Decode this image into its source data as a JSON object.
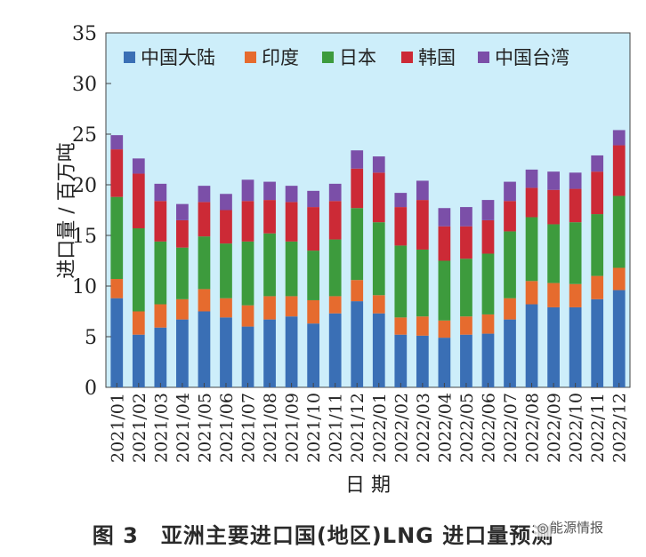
{
  "chart_data": {
    "type": "bar",
    "stacked": true,
    "title": "",
    "xlabel": "日 期",
    "ylabel": "进口量 / 百万吨",
    "ylim": [
      0,
      35
    ],
    "yticks": [
      0,
      5,
      10,
      15,
      20,
      25,
      30,
      35
    ],
    "legend_position": "top",
    "categories": [
      "2021/01",
      "2021/02",
      "2021/03",
      "2021/04",
      "2021/05",
      "2021/06",
      "2021/07",
      "2021/08",
      "2021/09",
      "2021/10",
      "2021/11",
      "2021/12",
      "2022/01",
      "2022/02",
      "2022/03",
      "2022/04",
      "2022/05",
      "2022/06",
      "2022/07",
      "2022/08",
      "2022/09",
      "2022/10",
      "2022/11",
      "2022/12"
    ],
    "series": [
      {
        "name": "中国大陆",
        "color": "#3a6fb5",
        "values": [
          8.8,
          5.2,
          5.9,
          6.7,
          7.5,
          6.9,
          6.0,
          6.7,
          7.0,
          6.3,
          7.3,
          8.5,
          7.3,
          5.2,
          5.1,
          4.9,
          5.2,
          5.3,
          6.7,
          8.2,
          7.9,
          7.9,
          8.7,
          9.6
        ]
      },
      {
        "name": "印度",
        "color": "#e66b2e",
        "values": [
          1.9,
          2.3,
          2.3,
          2.0,
          2.2,
          1.9,
          2.1,
          2.3,
          2.0,
          2.3,
          1.7,
          2.1,
          1.8,
          1.7,
          1.9,
          1.7,
          1.8,
          1.9,
          2.1,
          2.3,
          2.4,
          2.3,
          2.3,
          2.2
        ]
      },
      {
        "name": "日本",
        "color": "#3d9b3d",
        "values": [
          8.1,
          8.2,
          6.2,
          5.1,
          5.2,
          5.4,
          6.3,
          6.2,
          5.4,
          4.9,
          5.6,
          7.1,
          7.2,
          7.1,
          6.6,
          5.9,
          5.7,
          6.0,
          6.6,
          6.3,
          5.8,
          6.1,
          6.1,
          7.1
        ]
      },
      {
        "name": "韩国",
        "color": "#cc2a36",
        "values": [
          4.7,
          5.4,
          4.0,
          2.7,
          3.4,
          3.3,
          4.0,
          3.3,
          3.9,
          4.3,
          3.8,
          3.9,
          4.9,
          3.8,
          4.9,
          3.4,
          3.2,
          3.3,
          3.0,
          2.9,
          3.4,
          3.3,
          4.2,
          5.0
        ]
      },
      {
        "name": "中国台湾",
        "color": "#7b4fa8",
        "values": [
          1.4,
          1.5,
          1.7,
          1.6,
          1.6,
          1.6,
          2.1,
          1.8,
          1.6,
          1.6,
          1.7,
          1.8,
          1.6,
          1.4,
          1.9,
          1.8,
          1.9,
          2.0,
          1.9,
          1.8,
          1.8,
          1.6,
          1.6,
          1.5
        ]
      }
    ]
  },
  "caption": "图 3　亚洲主要进口国(地区)LNG 进口量预测",
  "watermark": "能源情报"
}
